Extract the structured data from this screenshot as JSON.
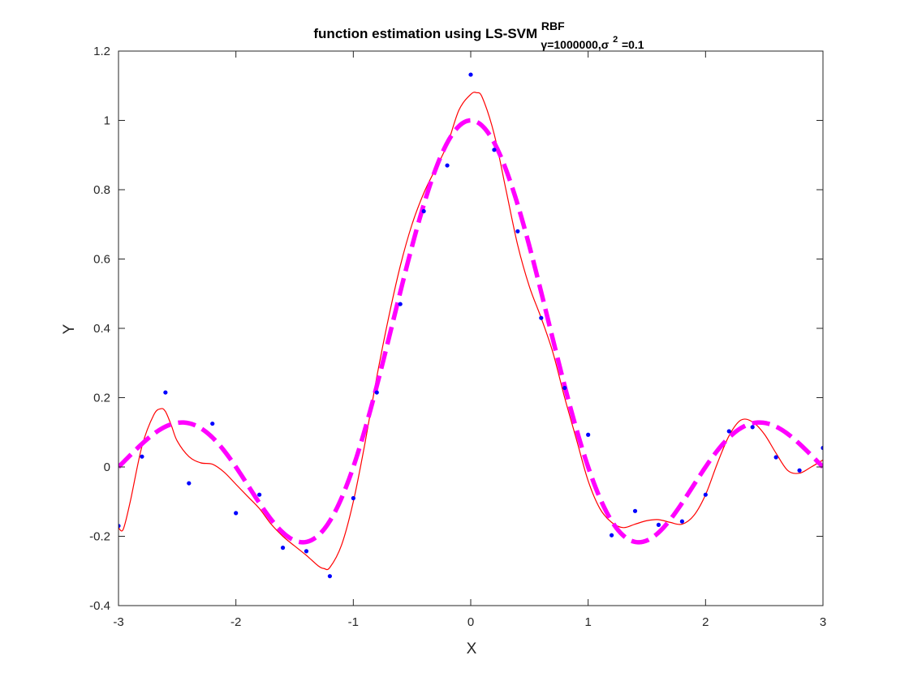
{
  "chart_data": {
    "type": "line",
    "title": "function estimation using  LS-SVM",
    "title_superscript": "RBF",
    "title_subscript_parts": [
      "γ=1000000,σ",
      "2",
      "=0.1"
    ],
    "xlabel": "X",
    "ylabel": "Y",
    "xlim": [
      -3,
      3
    ],
    "ylim": [
      -0.4,
      1.2
    ],
    "xticks": [
      -3,
      -2,
      -1,
      0,
      1,
      2,
      3
    ],
    "xtick_labels": [
      "-3",
      "-2",
      "-1",
      "0",
      "1",
      "2",
      "3"
    ],
    "yticks": [
      -0.4,
      -0.2,
      0,
      0.2,
      0.4,
      0.6,
      0.8,
      1,
      1.2
    ],
    "ytick_labels": [
      "-0.4",
      "-0.2",
      "0",
      "0.2",
      "0.4",
      "0.6",
      "0.8",
      "1",
      "1.2"
    ],
    "grid": false,
    "box": true,
    "series": [
      {
        "kind": "scatter",
        "color": "#0000ff",
        "x": [
          -3,
          -2.8,
          -2.6,
          -2.4,
          -2.2,
          -2,
          -1.8,
          -1.6,
          -1.4,
          -1.2,
          -1,
          -0.8,
          -0.6,
          -0.4,
          -0.2,
          0,
          0.2,
          0.4,
          0.6,
          0.8,
          1,
          1.2,
          1.4,
          1.6,
          1.8,
          2,
          2.2,
          2.4,
          2.6,
          2.8,
          3
        ],
        "y": [
          -0.17,
          0.03,
          0.215,
          -0.047,
          0.125,
          -0.133,
          -0.08,
          -0.233,
          -0.243,
          -0.315,
          -0.09,
          0.215,
          0.47,
          0.738,
          0.87,
          1.132,
          0.915,
          0.68,
          0.43,
          0.228,
          0.093,
          -0.197,
          -0.127,
          -0.167,
          -0.157,
          -0.08,
          0.103,
          0.115,
          0.028,
          -0.01,
          0.055
        ]
      },
      {
        "kind": "line",
        "style": "solid-thin",
        "color": "#ff0000",
        "x": [
          -3,
          -2.96,
          -2.9,
          -2.8,
          -2.7,
          -2.64,
          -2.6,
          -2.55,
          -2.5,
          -2.4,
          -2.3,
          -2.2,
          -2.1,
          -2.0,
          -1.9,
          -1.8,
          -1.7,
          -1.6,
          -1.5,
          -1.4,
          -1.3,
          -1.25,
          -1.2,
          -1.1,
          -1.0,
          -0.9,
          -0.8,
          -0.7,
          -0.6,
          -0.5,
          -0.4,
          -0.3,
          -0.2,
          -0.1,
          0,
          0.05,
          0.1,
          0.2,
          0.3,
          0.4,
          0.5,
          0.6,
          0.7,
          0.8,
          0.9,
          1.0,
          1.1,
          1.2,
          1.3,
          1.4,
          1.5,
          1.6,
          1.7,
          1.8,
          1.9,
          2.0,
          2.1,
          2.2,
          2.3,
          2.4,
          2.5,
          2.6,
          2.7,
          2.8,
          2.9,
          3
        ],
        "y": [
          -0.175,
          -0.18,
          -0.1,
          0.06,
          0.15,
          0.168,
          0.16,
          0.12,
          0.075,
          0.03,
          0.012,
          0.008,
          -0.015,
          -0.05,
          -0.085,
          -0.12,
          -0.165,
          -0.2,
          -0.228,
          -0.255,
          -0.285,
          -0.293,
          -0.29,
          -0.225,
          -0.1,
          0.07,
          0.26,
          0.43,
          0.58,
          0.7,
          0.79,
          0.86,
          0.93,
          1.03,
          1.075,
          1.08,
          1.065,
          0.96,
          0.8,
          0.64,
          0.52,
          0.43,
          0.33,
          0.2,
          0.08,
          -0.04,
          -0.12,
          -0.16,
          -0.175,
          -0.165,
          -0.155,
          -0.152,
          -0.16,
          -0.165,
          -0.14,
          -0.08,
          0.01,
          0.09,
          0.135,
          0.13,
          0.095,
          0.04,
          -0.01,
          -0.018,
          0.0,
          0.02
        ]
      },
      {
        "kind": "line",
        "style": "dashed-thick",
        "color": "#ff00ff",
        "function": "sinc(pi*x)",
        "x_range": [
          -3,
          3
        ]
      }
    ]
  }
}
